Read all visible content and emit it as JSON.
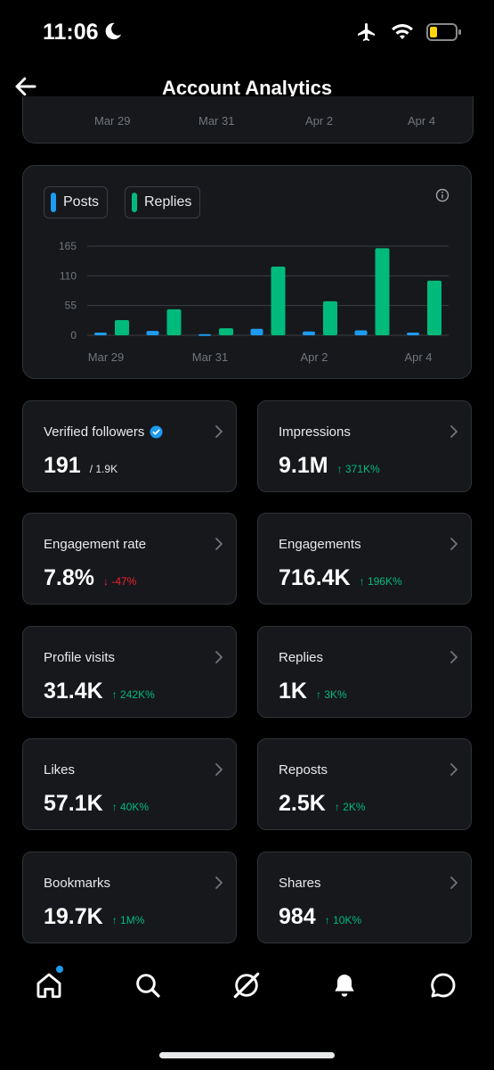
{
  "status_bar": {
    "time": "11:06"
  },
  "header": {
    "title": "Account Analytics"
  },
  "top_chart": {
    "x_labels": [
      "Mar 29",
      "Mar 31",
      "Apr 2",
      "Apr 4"
    ]
  },
  "chart_data": {
    "type": "bar",
    "x": [
      "Mar 29",
      "Mar 30",
      "Mar 31",
      "Apr 1",
      "Apr 2",
      "Apr 3",
      "Apr 4"
    ],
    "x_tick_labels": [
      "Mar 29",
      "Mar 31",
      "Apr 2",
      "Apr 4"
    ],
    "series": [
      {
        "name": "Posts",
        "color": "#1d9bf0",
        "values": [
          5,
          8,
          2,
          12,
          7,
          9,
          5
        ]
      },
      {
        "name": "Replies",
        "color": "#00ba7c",
        "values": [
          28,
          48,
          13,
          127,
          63,
          161,
          101
        ]
      }
    ],
    "y_ticks": [
      0,
      55,
      110,
      165
    ],
    "ylim": [
      0,
      165
    ],
    "grid": true,
    "legend_position": "top-left"
  },
  "stats": [
    {
      "label": "Verified followers",
      "value": "191",
      "sub": "/ 1.9K",
      "verified": true
    },
    {
      "label": "Impressions",
      "value": "9.1M",
      "delta": "↑ 371K%",
      "dir": "up"
    },
    {
      "label": "Engagement rate",
      "value": "7.8%",
      "delta": "↓ -47%",
      "dir": "down"
    },
    {
      "label": "Engagements",
      "value": "716.4K",
      "delta": "↑ 196K%",
      "dir": "up"
    },
    {
      "label": "Profile visits",
      "value": "31.4K",
      "delta": "↑ 242K%",
      "dir": "up"
    },
    {
      "label": "Replies",
      "value": "1K",
      "delta": "↑ 3K%",
      "dir": "up"
    },
    {
      "label": "Likes",
      "value": "57.1K",
      "delta": "↑ 40K%",
      "dir": "up"
    },
    {
      "label": "Reposts",
      "value": "2.5K",
      "delta": "↑ 2K%",
      "dir": "up"
    },
    {
      "label": "Bookmarks",
      "value": "19.7K",
      "delta": "↑ 1M%",
      "dir": "up"
    },
    {
      "label": "Shares",
      "value": "984",
      "delta": "↑ 10K%",
      "dir": "up"
    }
  ],
  "tabs": [
    {
      "icon": "home-icon",
      "has_badge": true
    },
    {
      "icon": "search-icon"
    },
    {
      "icon": "grok-icon"
    },
    {
      "icon": "bell-icon"
    },
    {
      "icon": "messages-icon"
    }
  ],
  "colors": {
    "posts": "#1d9bf0",
    "replies": "#00ba7c",
    "up": "#00ba7c",
    "down": "#f4212e"
  }
}
